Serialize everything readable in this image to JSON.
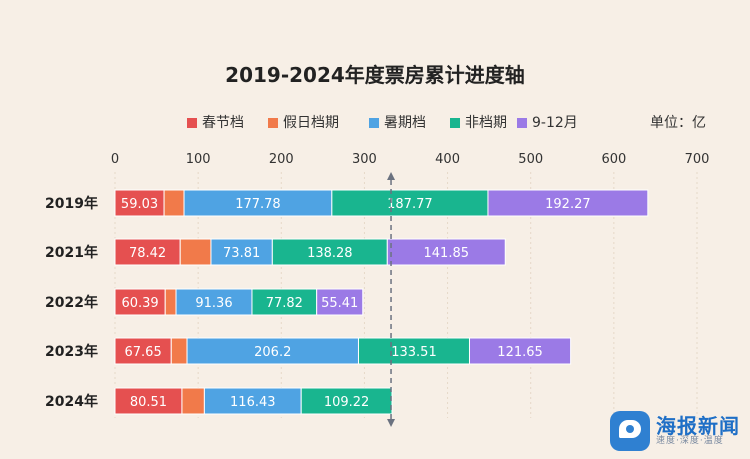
{
  "chart_data": {
    "type": "bar",
    "orientation": "horizontal",
    "stacked": true,
    "title": "2019-2024年度票房累计进度轴",
    "unit_label": "单位：亿",
    "categories": [
      "2019年",
      "2021年",
      "2022年",
      "2023年",
      "2024年"
    ],
    "series": [
      {
        "name": "春节档",
        "color": "#e55050",
        "values": [
          59.03,
          78.42,
          60.39,
          67.65,
          80.51
        ],
        "labels": [
          "59.03",
          "78.42",
          "60.39",
          "67.65",
          "80.51"
        ]
      },
      {
        "name": "假日档期",
        "color": "#f17a4a",
        "values": [
          24.0,
          37.0,
          13.0,
          19.0,
          27.0
        ],
        "labels": [
          "",
          "",
          "",
          "",
          ""
        ]
      },
      {
        "name": "暑期档",
        "color": "#4fa3e3",
        "values": [
          177.78,
          73.81,
          91.36,
          206.2,
          116.43
        ],
        "labels": [
          "177.78",
          "73.81",
          "91.36",
          "206.2",
          "116.43"
        ]
      },
      {
        "name": "非档期",
        "color": "#19b58f",
        "values": [
          187.77,
          138.28,
          77.82,
          133.51,
          109.22
        ],
        "labels": [
          "187.77",
          "138.28",
          "77.82",
          "133.51",
          "109.22"
        ]
      },
      {
        "name": "9-12月",
        "color": "#9b7ae6",
        "values": [
          192.27,
          141.85,
          55.41,
          121.65,
          0
        ],
        "labels": [
          "192.27",
          "141.85",
          "55.41",
          "121.65",
          ""
        ]
      }
    ],
    "xlim": [
      0,
      700
    ],
    "xticks": [
      "0",
      "100",
      "200",
      "300",
      "400",
      "500",
      "600",
      "700"
    ],
    "reference_line_value": 332,
    "legend_position": "top",
    "grid": false
  },
  "watermark": {
    "title": "海报新闻",
    "subtitle": "速度·深度·温度"
  }
}
